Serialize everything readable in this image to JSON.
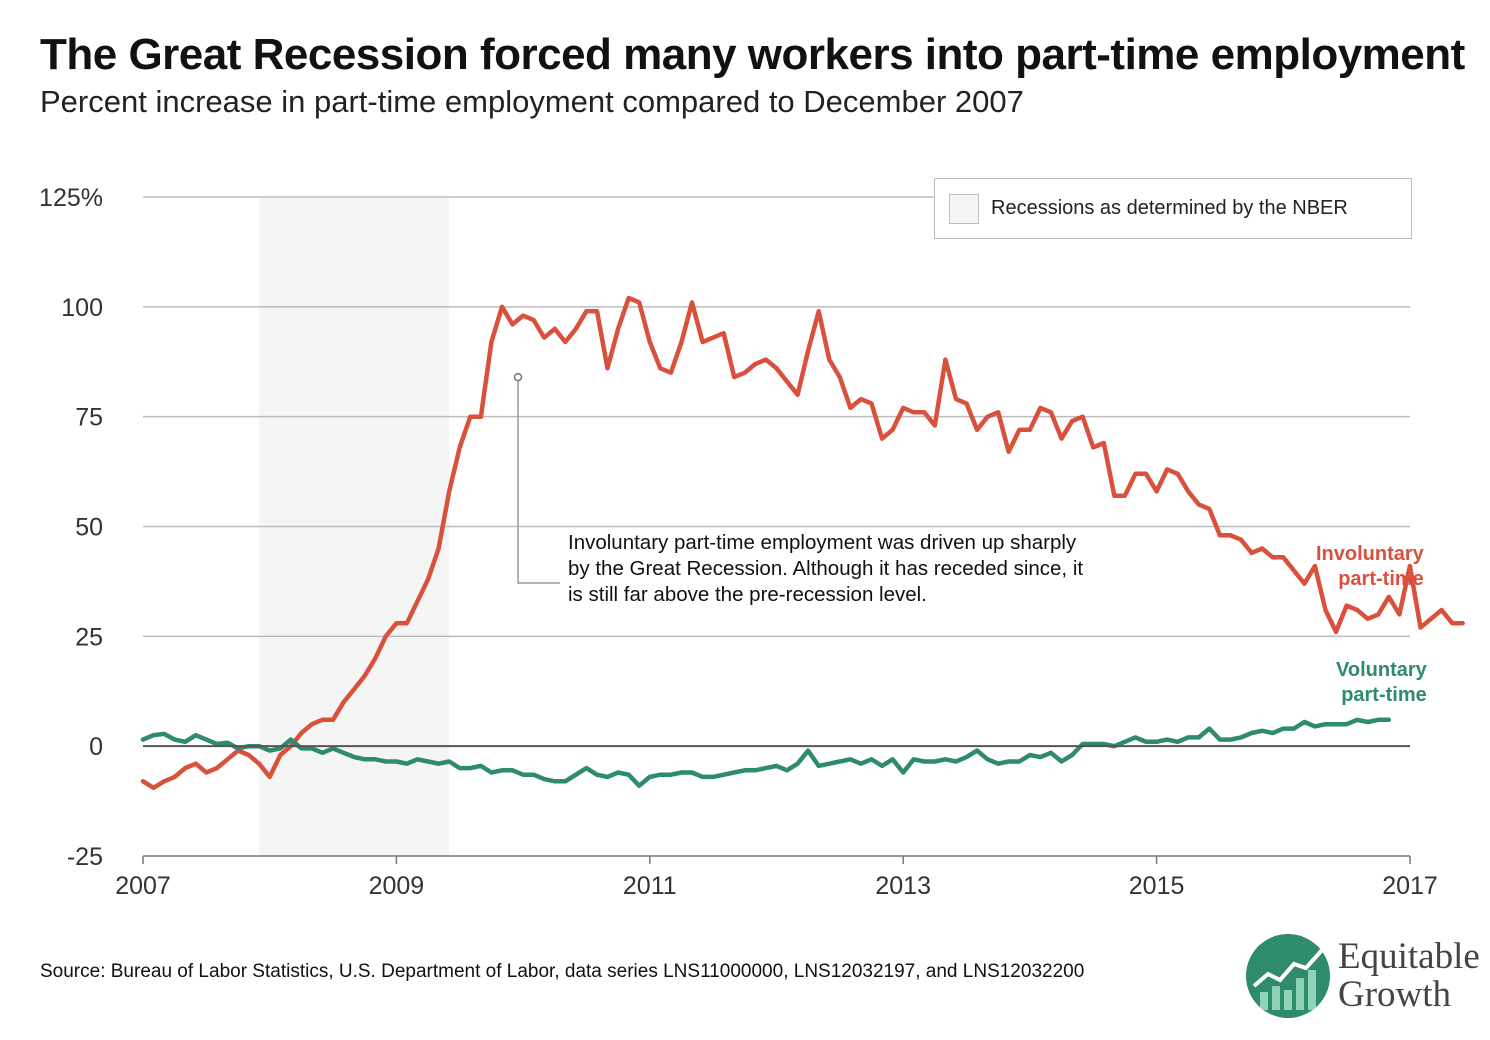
{
  "title": "The Great Recession forced many workers into part-time employment",
  "subtitle": "Percent increase in part-time employment compared to December 2007",
  "legend": {
    "label": "Recessions as determined by the NBER"
  },
  "annotation": "Involuntary part-time employment was driven up sharply by the Great Recession. Although it has receded since, it is still far above the pre-recession level.",
  "source": "Source: Bureau of Labor Statistics, U.S. Department of Labor, data series LNS11000000, LNS12032197, and LNS12032200",
  "logo": {
    "line1": "Equitable",
    "line2": "Growth"
  },
  "colors": {
    "involuntary": "#d9513c",
    "voluntary": "#2e8b6b",
    "recession": "#f5f5f5",
    "grid": "#bdbdbd"
  },
  "chart_data": {
    "type": "line",
    "x_range": [
      2007.0,
      2017.0
    ],
    "ylim": [
      -25,
      125
    ],
    "x_ticks": [
      {
        "value": 2007,
        "label": "2007"
      },
      {
        "value": 2009,
        "label": "2009"
      },
      {
        "value": 2011,
        "label": "2011"
      },
      {
        "value": 2013,
        "label": "2013"
      },
      {
        "value": 2015,
        "label": "2015"
      },
      {
        "value": 2017,
        "label": "2017"
      }
    ],
    "y_ticks": [
      {
        "value": -25,
        "label": "-25"
      },
      {
        "value": 0,
        "label": "0"
      },
      {
        "value": 25,
        "label": "25"
      },
      {
        "value": 50,
        "label": "50"
      },
      {
        "value": 75,
        "label": "75"
      },
      {
        "value": 100,
        "label": "100"
      },
      {
        "value": 125,
        "label": "125%"
      }
    ],
    "recession": {
      "start": "Dec 2007",
      "end": "Jun 2009",
      "start_x": 2007.917,
      "end_x": 2009.417
    },
    "annotation_point": {
      "x": 2009.96,
      "y": 84
    },
    "series": [
      {
        "name": "Involuntary part-time",
        "start": "Jan 2007",
        "step_years": 0.08333,
        "values": [
          -8,
          -9.5,
          -8,
          -7,
          -5,
          -4,
          -6,
          -5,
          -3,
          -1,
          -2,
          -4,
          -7,
          -2,
          0,
          3,
          5,
          6,
          6,
          10,
          13,
          16,
          20,
          25,
          28,
          28,
          33,
          38,
          45,
          58,
          68,
          75,
          75,
          92,
          100,
          96,
          98,
          97,
          93,
          95,
          92,
          95,
          99,
          99,
          86,
          95,
          102,
          101,
          92,
          86,
          85,
          92,
          101,
          92,
          93,
          94,
          84,
          85,
          87,
          88,
          86,
          83,
          80,
          90,
          99,
          88,
          84,
          77,
          79,
          78,
          70,
          72,
          77,
          76,
          76,
          73,
          88,
          79,
          78,
          72,
          75,
          76,
          67,
          72,
          72,
          77,
          76,
          70,
          74,
          75,
          68,
          69,
          57,
          57,
          62,
          62,
          58,
          63,
          62,
          58,
          55,
          54,
          48,
          48,
          47,
          44,
          45,
          43,
          43,
          40,
          37,
          41,
          31,
          26,
          32,
          31,
          29,
          30,
          34,
          30,
          41,
          27,
          29,
          31,
          28,
          28
        ]
      },
      {
        "name": "Voluntary part-time",
        "start": "Jan 2007",
        "step_years": 0.08333,
        "values": [
          1.5,
          2.5,
          2.8,
          1.5,
          1,
          2.5,
          1.5,
          0.5,
          0.8,
          -0.5,
          0,
          0,
          -1,
          -0.5,
          1.5,
          -0.5,
          -0.5,
          -1.5,
          -0.5,
          -1.5,
          -2.5,
          -3,
          -3,
          -3.5,
          -3.5,
          -4,
          -3,
          -3.5,
          -4,
          -3.5,
          -5,
          -5,
          -4.5,
          -6,
          -5.5,
          -5.5,
          -6.5,
          -6.5,
          -7.5,
          -8,
          -8,
          -6.5,
          -5,
          -6.5,
          -7,
          -6,
          -6.5,
          -9,
          -7,
          -6.5,
          -6.5,
          -6,
          -6,
          -7,
          -7,
          -6.5,
          -6,
          -5.5,
          -5.5,
          -5,
          -4.5,
          -5.5,
          -4,
          -1,
          -4.5,
          -4,
          -3.5,
          -3,
          -4,
          -3,
          -4.5,
          -3,
          -6,
          -3,
          -3.5,
          -3.5,
          -3,
          -3.5,
          -2.5,
          -1,
          -3,
          -4,
          -3.5,
          -3.5,
          -2,
          -2.5,
          -1.5,
          -3.5,
          -2,
          0.5,
          0.5,
          0.5,
          0,
          1,
          2,
          1,
          1,
          1.5,
          1,
          2,
          2,
          4,
          1.5,
          1.5,
          2,
          3,
          3.5,
          3,
          4,
          4,
          5.5,
          4.5,
          5,
          5,
          5,
          6,
          5.5,
          6,
          6
        ]
      }
    ],
    "series_labels": {
      "involuntary": {
        "line1": "Involuntary",
        "line2": "part-time"
      },
      "voluntary": {
        "line1": "Voluntary",
        "line2": "part-time"
      }
    }
  }
}
